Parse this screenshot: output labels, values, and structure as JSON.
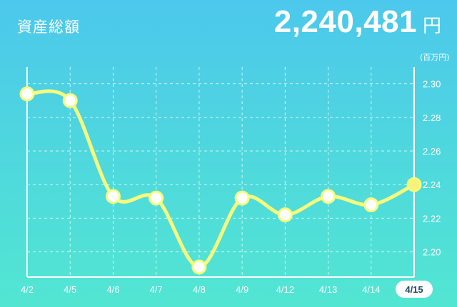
{
  "header": {
    "title": "資産総額",
    "total_value": "2,240,481",
    "total_unit": "円"
  },
  "chart_data": {
    "type": "line",
    "title": "",
    "xlabel": "",
    "ylabel": "",
    "y_unit": "(百万円)",
    "ylim": [
      2.185,
      2.31
    ],
    "yticks": [
      "2.30",
      "2.28",
      "2.26",
      "2.24",
      "2.22",
      "2.20"
    ],
    "categories": [
      "4/2",
      "4/5",
      "4/6",
      "4/7",
      "4/8",
      "4/9",
      "4/12",
      "4/13",
      "4/14",
      "4/15"
    ],
    "values": [
      2.294,
      2.29,
      2.233,
      2.232,
      2.191,
      2.232,
      2.222,
      2.233,
      2.228,
      2.24
    ],
    "selected_index": 9,
    "grid": true,
    "colors": {
      "line": "#f6fb7c",
      "point_fill": "#ffffff",
      "selected_point_fill": "#f8f27a",
      "selected_label_bg": "#ffffff",
      "selected_label_text": "#1c4b66"
    }
  }
}
